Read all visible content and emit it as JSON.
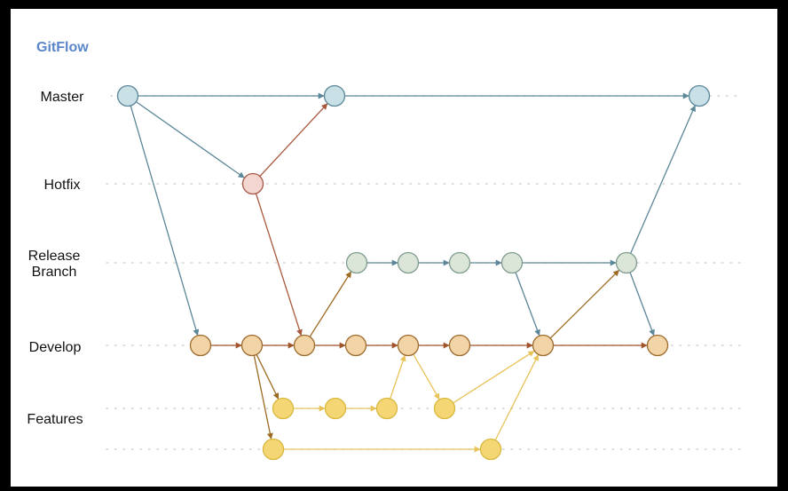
{
  "title": "GitFlow",
  "colors": {
    "title": "#5a86c9",
    "master_fill": "#c9e0e6",
    "master_stroke": "#5b8799",
    "hotfix_fill": "#f3d6cf",
    "hotfix_stroke": "#a8594a",
    "release_fill": "#dce6d8",
    "release_stroke": "#7f9c8f",
    "develop_fill": "#f3d4a6",
    "develop_stroke": "#9e6b2e",
    "feature_fill": "#f4d774",
    "feature_stroke": "#d8b83d",
    "edge_master": "#5b8799",
    "edge_hotfix": "#a8583c",
    "edge_develop_merge": "#9b6a23",
    "edge_develop": "#a0542a",
    "edge_feature": "#e8c35a"
  },
  "lanes": [
    {
      "id": "master",
      "label": "Master"
    },
    {
      "id": "hotfix",
      "label": "Hotfix"
    },
    {
      "id": "release",
      "label": "Release\nBranch"
    },
    {
      "id": "develop",
      "label": "Develop"
    },
    {
      "id": "features",
      "label": "Features"
    }
  ],
  "nodes": [
    {
      "id": "m1",
      "branch": "master"
    },
    {
      "id": "m2",
      "branch": "master"
    },
    {
      "id": "m3",
      "branch": "master"
    },
    {
      "id": "h1",
      "branch": "hotfix"
    },
    {
      "id": "r1",
      "branch": "release"
    },
    {
      "id": "r2",
      "branch": "release"
    },
    {
      "id": "r3",
      "branch": "release"
    },
    {
      "id": "r4",
      "branch": "release"
    },
    {
      "id": "r5",
      "branch": "release"
    },
    {
      "id": "d1",
      "branch": "develop"
    },
    {
      "id": "d2",
      "branch": "develop"
    },
    {
      "id": "d3",
      "branch": "develop"
    },
    {
      "id": "d4",
      "branch": "develop"
    },
    {
      "id": "d5",
      "branch": "develop"
    },
    {
      "id": "d6",
      "branch": "develop"
    },
    {
      "id": "d7",
      "branch": "develop"
    },
    {
      "id": "d8",
      "branch": "develop"
    },
    {
      "id": "f1",
      "branch": "feature"
    },
    {
      "id": "f2",
      "branch": "feature"
    },
    {
      "id": "f3",
      "branch": "feature"
    },
    {
      "id": "f4",
      "branch": "feature"
    },
    {
      "id": "g1",
      "branch": "feature"
    },
    {
      "id": "g2",
      "branch": "feature"
    }
  ],
  "edges": [
    {
      "from": "m1",
      "to": "m2",
      "color": "edge_master"
    },
    {
      "from": "m2",
      "to": "m3",
      "color": "edge_master"
    },
    {
      "from": "m1",
      "to": "h1",
      "color": "edge_master"
    },
    {
      "from": "m1",
      "to": "d1",
      "color": "edge_master"
    },
    {
      "from": "h1",
      "to": "m2",
      "color": "edge_hotfix"
    },
    {
      "from": "h1",
      "to": "d3",
      "color": "edge_hotfix"
    },
    {
      "from": "d3",
      "to": "r1",
      "color": "edge_develop_merge"
    },
    {
      "from": "r1",
      "to": "r2",
      "color": "edge_master"
    },
    {
      "from": "r2",
      "to": "r3",
      "color": "edge_master"
    },
    {
      "from": "r3",
      "to": "r4",
      "color": "edge_master"
    },
    {
      "from": "r4",
      "to": "r5",
      "color": "edge_master"
    },
    {
      "from": "r5",
      "to": "m3",
      "color": "edge_master"
    },
    {
      "from": "r4",
      "to": "d7",
      "color": "edge_master"
    },
    {
      "from": "r5",
      "to": "d8",
      "color": "edge_master"
    },
    {
      "from": "d7",
      "to": "r5",
      "color": "edge_develop_merge"
    },
    {
      "from": "d1",
      "to": "d2",
      "color": "edge_develop"
    },
    {
      "from": "d2",
      "to": "d3",
      "color": "edge_develop"
    },
    {
      "from": "d3",
      "to": "d4",
      "color": "edge_develop"
    },
    {
      "from": "d4",
      "to": "d5",
      "color": "edge_develop"
    },
    {
      "from": "d5",
      "to": "d6",
      "color": "edge_develop"
    },
    {
      "from": "d6",
      "to": "d7",
      "color": "edge_develop"
    },
    {
      "from": "d7",
      "to": "d8",
      "color": "edge_develop"
    },
    {
      "from": "d2",
      "to": "f1",
      "color": "edge_develop_merge"
    },
    {
      "from": "d2",
      "to": "g1",
      "color": "edge_develop_merge"
    },
    {
      "from": "f1",
      "to": "f2",
      "color": "edge_feature"
    },
    {
      "from": "f2",
      "to": "f3",
      "color": "edge_feature"
    },
    {
      "from": "f3",
      "to": "d5",
      "color": "edge_feature"
    },
    {
      "from": "d5",
      "to": "f4",
      "color": "edge_feature"
    },
    {
      "from": "f4",
      "to": "d7",
      "color": "edge_feature"
    },
    {
      "from": "g1",
      "to": "g2",
      "color": "edge_feature"
    },
    {
      "from": "g2",
      "to": "d7",
      "color": "edge_feature"
    }
  ]
}
